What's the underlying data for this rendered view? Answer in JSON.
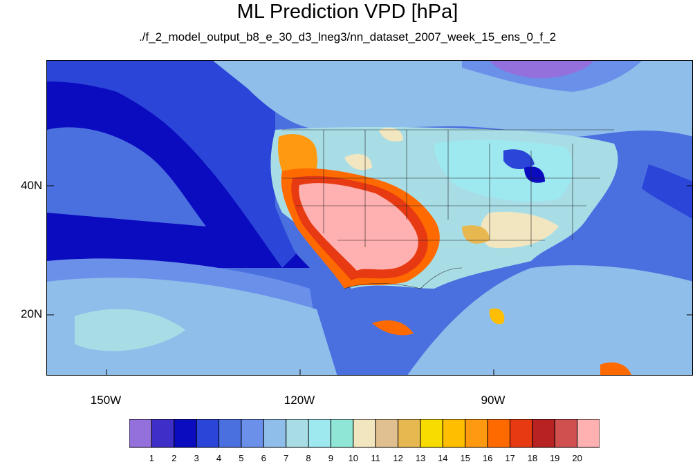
{
  "title": "ML Prediction VPD [hPa]",
  "subtitle": "./f_2_model_output_b8_e_30_d3_lneg3/nn_dataset_2007_week_15_ens_0_f_2",
  "lat_labels": [
    "40N",
    "20N"
  ],
  "lon_labels": [
    "150W",
    "120W",
    "90W"
  ],
  "colorbar": {
    "labels": [
      "1",
      "2",
      "3",
      "4",
      "5",
      "6",
      "7",
      "8",
      "9",
      "10",
      "11",
      "12",
      "13",
      "14",
      "15",
      "16",
      "17",
      "18",
      "19",
      "20"
    ],
    "colors": [
      "#9370db",
      "#3f2fc9",
      "#0b0bbf",
      "#2a45d8",
      "#4a70e0",
      "#6a90ea",
      "#8fbeea",
      "#a9dde6",
      "#9ee8f0",
      "#90e6d6",
      "#f2e6c0",
      "#e0c090",
      "#e8b850",
      "#f8dc00",
      "#ffbf00",
      "#ff9a10",
      "#ff6a00",
      "#e83a12",
      "#b82222",
      "#d05050",
      "#ffb0b0"
    ]
  }
}
